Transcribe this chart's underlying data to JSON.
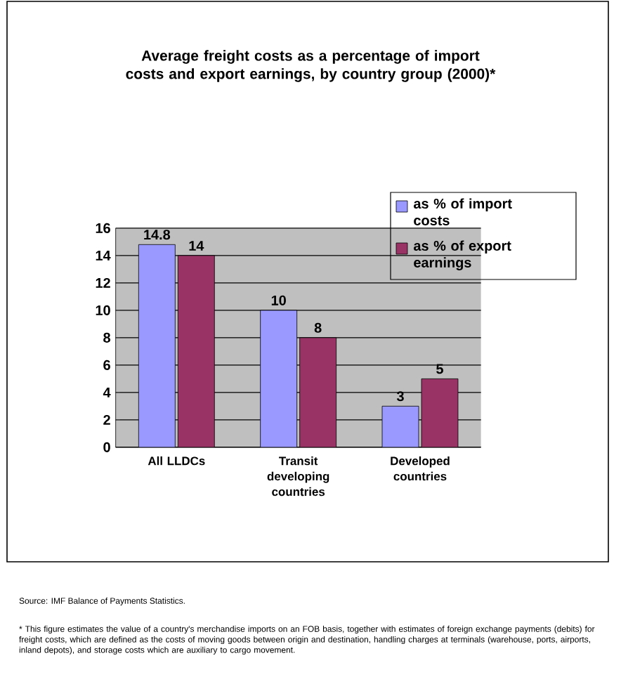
{
  "chart_data": {
    "type": "bar",
    "title": "Average freight costs as a percentage of import costs and export earnings, by country group (2000)*",
    "categories": [
      "All LLDCs",
      "Transit developing countries",
      "Developed countries"
    ],
    "series": [
      {
        "name": "as % of import costs",
        "color": "#9999ff",
        "values": [
          14.8,
          10,
          3
        ]
      },
      {
        "name": "as % of export earnings",
        "color": "#993366",
        "values": [
          14,
          8,
          5
        ]
      }
    ],
    "ylim": [
      0,
      16
    ],
    "yticks": [
      0,
      2,
      4,
      6,
      8,
      10,
      12,
      14,
      16
    ],
    "grid": "y",
    "legend": "top right",
    "data_labels": true,
    "annotations": [
      "Source: IMF Balance of Payments Statistics.",
      "* This figure estimates the value of a country's merchandise imports on an FOB basis, together with estimates of foreign exchange payments (debits) for freight costs, which are defined as the costs of moving goods between origin and destination, handling charges at terminals (warehouse, ports, airports, inland depots), and storage costs which are auxiliary to cargo movement."
    ]
  }
}
